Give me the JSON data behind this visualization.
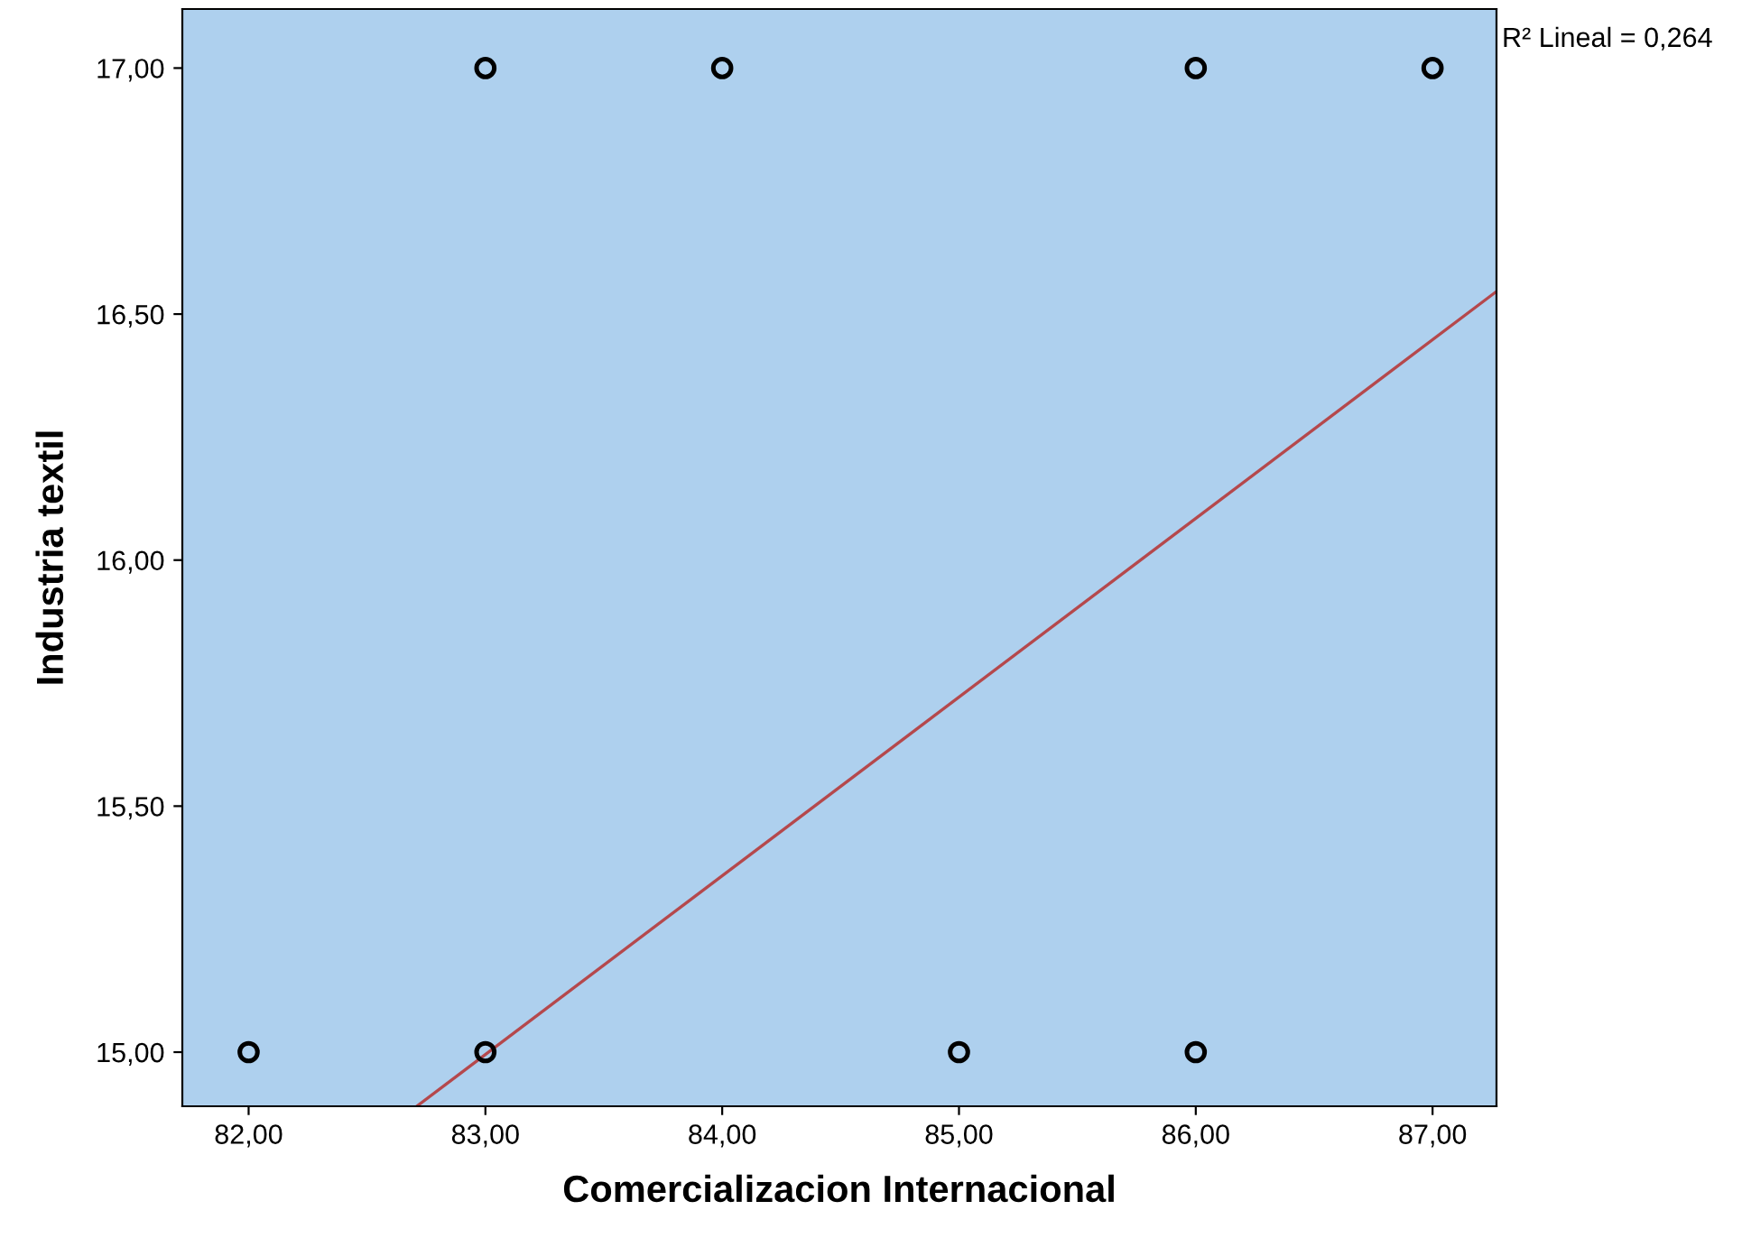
{
  "chart_data": {
    "type": "scatter",
    "xlabel": "Comercializacion Internacional",
    "ylabel": "Industria textil",
    "annotations": [
      "R² Lineal = 0,264"
    ],
    "grid": false,
    "legend": false,
    "xlim": [
      81.72,
      87.27
    ],
    "ylim": [
      14.89,
      17.12
    ],
    "xticks": [
      {
        "value": 82,
        "label": "82,00"
      },
      {
        "value": 83,
        "label": "83,00"
      },
      {
        "value": 84,
        "label": "84,00"
      },
      {
        "value": 85,
        "label": "85,00"
      },
      {
        "value": 86,
        "label": "86,00"
      },
      {
        "value": 87,
        "label": "87,00"
      }
    ],
    "yticks": [
      {
        "value": 15,
        "label": "15,00"
      },
      {
        "value": 15.5,
        "label": "15,50"
      },
      {
        "value": 16,
        "label": "16,00"
      },
      {
        "value": 16.5,
        "label": "16,50"
      },
      {
        "value": 17,
        "label": "17,00"
      }
    ],
    "series": [
      {
        "marker": "circle",
        "color": "#000000",
        "x": [
          82,
          83,
          83,
          84,
          85,
          86,
          86,
          87
        ],
        "values": [
          15,
          17,
          15,
          17,
          15,
          17,
          15,
          17
        ]
      },
      {
        "type": "line",
        "color": "#b5484c",
        "x": [
          82.71,
          87.27
        ],
        "values": [
          14.89,
          16.546
        ]
      }
    ]
  }
}
